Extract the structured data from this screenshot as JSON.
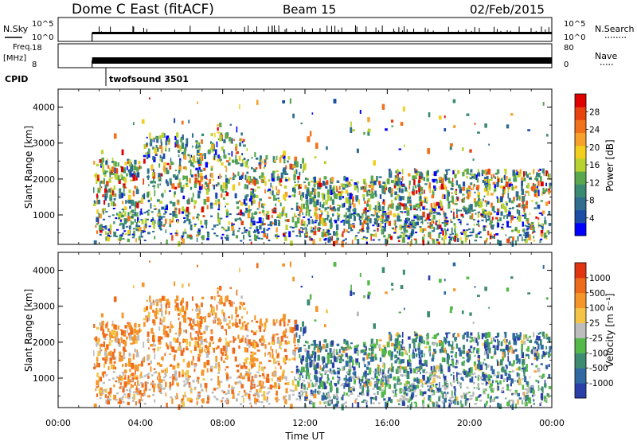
{
  "header": {
    "title": "Dome C East (fitACF)",
    "beam": "Beam 15",
    "date": "02/Feb/2015"
  },
  "side_labels": {
    "nsky": "N.Sky",
    "freq_line1": "Freq.",
    "freq_line2": "[MHz]",
    "cpid": "CPID",
    "nsearch": "N.Search",
    "nave": "Nave"
  },
  "cpid_value": "twofsound 3501",
  "chart_data": [
    {
      "type": "line",
      "name": "noise-panel",
      "ylabel_left": "N.Sky",
      "ylabel_right": "N.Search",
      "left_ticks": [
        "10^5",
        "10^0"
      ],
      "right_ticks": [
        "10^5",
        "10^0"
      ],
      "data_start_ut": 1.65,
      "data_end_ut": 24.0,
      "baseline_level": 0.35
    },
    {
      "type": "line",
      "name": "freq-nave-panel",
      "ylabel_left": "Freq. [MHz]",
      "ylabel_right": "Nave",
      "left_ticks": [
        "18",
        "8"
      ],
      "right_ticks": [
        "80",
        "0"
      ],
      "data_start_ut": 1.65,
      "data_end_ut": 24.0,
      "freq_level_mhz": 11,
      "freq_range_mhz": [
        8,
        18
      ]
    },
    {
      "type": "heatmap",
      "name": "power",
      "ylabel": "Slant Range [km]",
      "yticks": [
        "1000",
        "2000",
        "3000",
        "4000"
      ],
      "ylim": [
        180,
        4500
      ],
      "xlim": [
        0,
        24
      ],
      "colorbar": {
        "label": "Power [dB]",
        "ticks": [
          "28",
          "24",
          "20",
          "16",
          "12",
          "8",
          "4"
        ],
        "colors": [
          "#0000ff",
          "#1d4ea6",
          "#2f6e8e",
          "#3b8a72",
          "#59a84e",
          "#b8d32f",
          "#f2cf1e",
          "#f7a02b",
          "#f2721c",
          "#e8430e",
          "#e00000"
        ]
      }
    },
    {
      "type": "heatmap",
      "name": "velocity",
      "ylabel": "Slant Range [km]",
      "yticks": [
        "1000",
        "2000",
        "3000",
        "4000"
      ],
      "ylim": [
        180,
        4500
      ],
      "xlim": [
        0,
        24
      ],
      "xticks": [
        "00:00",
        "04:00",
        "08:00",
        "12:00",
        "16:00",
        "20:00",
        "00:00"
      ],
      "xlabel": "Time UT",
      "colorbar": {
        "label": "Velocity [m s⁻¹]",
        "ticks": [
          "1000",
          "500",
          "100",
          "25",
          "-25",
          "-100",
          "-500",
          "-1000"
        ],
        "colors": [
          "#2a3fa8",
          "#2f6aa3",
          "#3d8c72",
          "#55b94a",
          "#bdbdbd",
          "#f3c447",
          "#f5962a",
          "#ef6b1c",
          "#e03510"
        ]
      }
    }
  ]
}
